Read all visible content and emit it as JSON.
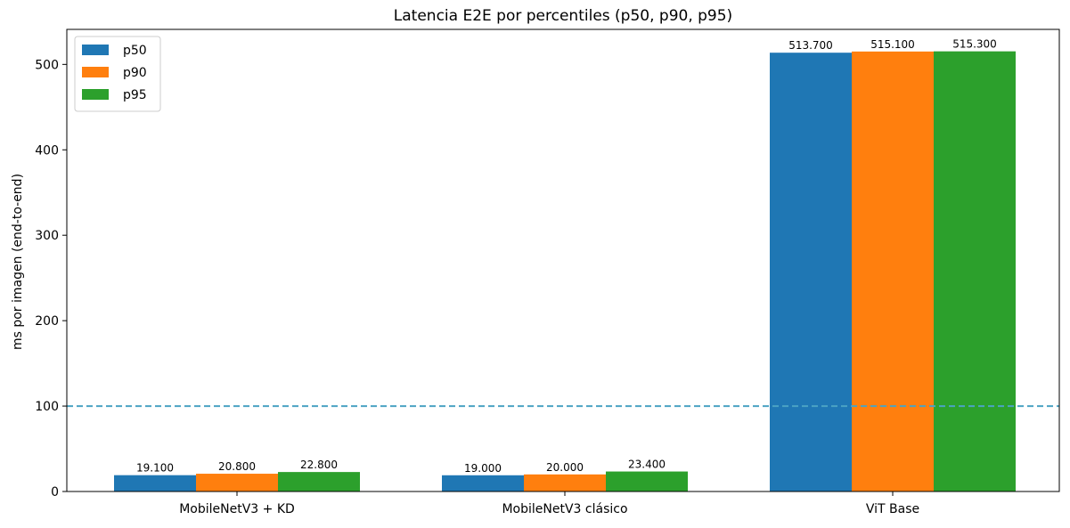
{
  "chart_data": {
    "type": "bar",
    "title": "Latencia E2E por percentiles (p50, p90, p95)",
    "xlabel": "",
    "ylabel": "ms por imagen (end-to-end)",
    "categories": [
      "MobileNetV3 + KD",
      "MobileNetV3 clásico",
      "ViT Base"
    ],
    "series": [
      {
        "name": "p50",
        "color": "#1f77b4",
        "values": [
          19.1,
          19.0,
          513.7
        ],
        "labels": [
          "19.100",
          "19.000",
          "513.700"
        ]
      },
      {
        "name": "p90",
        "color": "#ff7f0e",
        "values": [
          20.8,
          20.0,
          515.1
        ],
        "labels": [
          "20.800",
          "20.000",
          "515.100"
        ]
      },
      {
        "name": "p95",
        "color": "#2ca02c",
        "values": [
          22.8,
          23.4,
          515.3
        ],
        "labels": [
          "22.800",
          "23.400",
          "515.300"
        ]
      }
    ],
    "ylim": [
      0,
      541
    ],
    "yticks": [
      0,
      100,
      200,
      300,
      400,
      500
    ],
    "reference_line": {
      "y": 100,
      "style": "dashed",
      "color": "#4ba3c3"
    },
    "grid": false,
    "legend_position": "upper-left"
  }
}
